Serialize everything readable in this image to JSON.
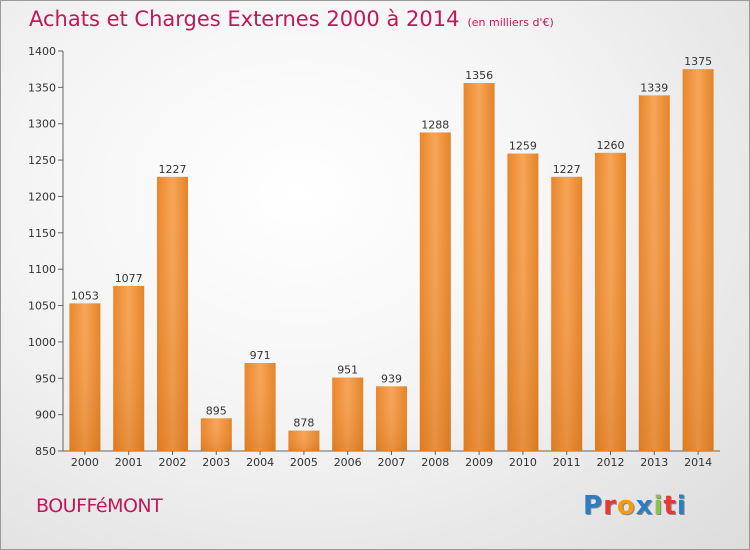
{
  "title": "Achats et Charges Externes 2000 à 2014",
  "subtitle": "(en milliers d'€)",
  "town": "BOUFFéMONT",
  "logo": {
    "letters": [
      "P",
      "r",
      "o",
      "x",
      "i",
      "t",
      "i"
    ],
    "colors": [
      "#2e7cc2",
      "#e53935",
      "#f39c12",
      "#2e7cc2",
      "#8bc34a",
      "#e53935",
      "#2e7cc2"
    ]
  },
  "colors": {
    "bar_light": "#f7a95a",
    "bar_dark": "#e07b1f",
    "accent": "#c2185b"
  },
  "chart_data": {
    "type": "bar",
    "title": "Achats et Charges Externes 2000 à 2014",
    "xlabel": "",
    "ylabel": "",
    "categories": [
      "2000",
      "2001",
      "2002",
      "2003",
      "2004",
      "2005",
      "2006",
      "2007",
      "2008",
      "2009",
      "2010",
      "2011",
      "2012",
      "2013",
      "2014"
    ],
    "values": [
      1053,
      1077,
      1227,
      895,
      971,
      878,
      951,
      939,
      1288,
      1356,
      1259,
      1227,
      1260,
      1339,
      1375
    ],
    "ylim": [
      850,
      1400
    ],
    "yticks": [
      850,
      900,
      950,
      1000,
      1050,
      1100,
      1150,
      1200,
      1250,
      1300,
      1350,
      1400
    ],
    "grid": false,
    "legend": "none"
  }
}
